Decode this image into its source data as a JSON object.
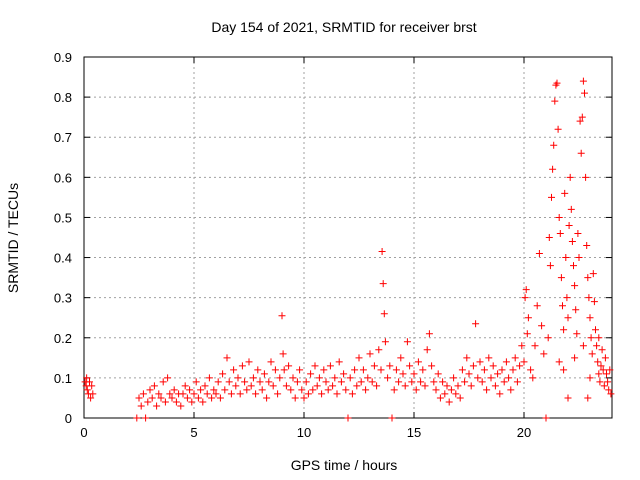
{
  "chart_data": {
    "type": "scatter",
    "title": "Day 154 of 2021, SRMTID for receiver brst",
    "xlabel": "GPS time / hours",
    "ylabel": "SRMTID / TECUs",
    "xlim": [
      0,
      24
    ],
    "ylim": [
      0,
      0.9
    ],
    "grid": true,
    "marker": "plus",
    "color": "#ff0000",
    "xticks": [
      0,
      5,
      10,
      15,
      20
    ],
    "xtick_labels": [
      "0",
      "5",
      "10",
      "15",
      "20"
    ],
    "yticks": [
      0,
      0.1,
      0.2,
      0.3,
      0.4,
      0.5,
      0.6,
      0.7,
      0.8,
      0.9
    ],
    "ytick_labels": [
      "0",
      "0.1",
      "0.2",
      "0.3",
      "0.4",
      "0.5",
      "0.6",
      "0.7",
      "0.8",
      "0.9"
    ],
    "points": [
      [
        0.05,
        0.09
      ],
      [
        0.1,
        0.08
      ],
      [
        0.12,
        0.1
      ],
      [
        0.15,
        0.07
      ],
      [
        0.2,
        0.06
      ],
      [
        0.25,
        0.09
      ],
      [
        0.3,
        0.05
      ],
      [
        0.35,
        0.08
      ],
      [
        0.4,
        0.06
      ],
      [
        2.4,
        0.0
      ],
      [
        2.5,
        0.05
      ],
      [
        2.6,
        0.03
      ],
      [
        2.7,
        0.06
      ],
      [
        2.8,
        0.0
      ],
      [
        2.9,
        0.04
      ],
      [
        3.0,
        0.07
      ],
      [
        3.1,
        0.05
      ],
      [
        3.2,
        0.08
      ],
      [
        3.3,
        0.03
      ],
      [
        3.4,
        0.06
      ],
      [
        3.5,
        0.05
      ],
      [
        3.6,
        0.09
      ],
      [
        3.7,
        0.04
      ],
      [
        3.8,
        0.1
      ],
      [
        3.9,
        0.06
      ],
      [
        4.0,
        0.05
      ],
      [
        4.1,
        0.07
      ],
      [
        4.2,
        0.04
      ],
      [
        4.3,
        0.06
      ],
      [
        4.4,
        0.03
      ],
      [
        4.5,
        0.06
      ],
      [
        4.6,
        0.08
      ],
      [
        4.7,
        0.05
      ],
      [
        4.8,
        0.07
      ],
      [
        4.9,
        0.04
      ],
      [
        5.0,
        0.06
      ],
      [
        5.1,
        0.09
      ],
      [
        5.2,
        0.05
      ],
      [
        5.3,
        0.07
      ],
      [
        5.4,
        0.04
      ],
      [
        5.5,
        0.08
      ],
      [
        5.6,
        0.06
      ],
      [
        5.7,
        0.1
      ],
      [
        5.8,
        0.05
      ],
      [
        5.9,
        0.07
      ],
      [
        6.0,
        0.06
      ],
      [
        6.1,
        0.09
      ],
      [
        6.2,
        0.05
      ],
      [
        6.3,
        0.11
      ],
      [
        6.4,
        0.07
      ],
      [
        6.5,
        0.15
      ],
      [
        6.6,
        0.09
      ],
      [
        6.7,
        0.06
      ],
      [
        6.8,
        0.12
      ],
      [
        6.9,
        0.08
      ],
      [
        7.0,
        0.1
      ],
      [
        7.1,
        0.06
      ],
      [
        7.2,
        0.13
      ],
      [
        7.3,
        0.09
      ],
      [
        7.4,
        0.07
      ],
      [
        7.5,
        0.14
      ],
      [
        7.6,
        0.08
      ],
      [
        7.7,
        0.1
      ],
      [
        7.8,
        0.06
      ],
      [
        7.9,
        0.12
      ],
      [
        8.0,
        0.09
      ],
      [
        8.1,
        0.07
      ],
      [
        8.2,
        0.11
      ],
      [
        8.3,
        0.05
      ],
      [
        8.4,
        0.09
      ],
      [
        8.5,
        0.14
      ],
      [
        8.6,
        0.08
      ],
      [
        8.7,
        0.12
      ],
      [
        8.8,
        0.06
      ],
      [
        8.9,
        0.1
      ],
      [
        9.0,
        0.255
      ],
      [
        9.05,
        0.16
      ],
      [
        9.1,
        0.12
      ],
      [
        9.2,
        0.08
      ],
      [
        9.3,
        0.13
      ],
      [
        9.4,
        0.07
      ],
      [
        9.5,
        0.1
      ],
      [
        9.6,
        0.05
      ],
      [
        9.7,
        0.09
      ],
      [
        9.8,
        0.12
      ],
      [
        9.9,
        0.07
      ],
      [
        10.0,
        0.05
      ],
      [
        10.1,
        0.09
      ],
      [
        10.2,
        0.06
      ],
      [
        10.3,
        0.11
      ],
      [
        10.4,
        0.07
      ],
      [
        10.5,
        0.13
      ],
      [
        10.6,
        0.08
      ],
      [
        10.7,
        0.1
      ],
      [
        10.8,
        0.06
      ],
      [
        10.9,
        0.12
      ],
      [
        11.0,
        0.09
      ],
      [
        11.1,
        0.07
      ],
      [
        11.2,
        0.13
      ],
      [
        11.3,
        0.08
      ],
      [
        11.4,
        0.1
      ],
      [
        11.5,
        0.06
      ],
      [
        11.6,
        0.14
      ],
      [
        11.7,
        0.09
      ],
      [
        11.8,
        0.11
      ],
      [
        11.9,
        0.07
      ],
      [
        12.0,
        0.0
      ],
      [
        12.1,
        0.1
      ],
      [
        12.2,
        0.06
      ],
      [
        12.3,
        0.12
      ],
      [
        12.4,
        0.08
      ],
      [
        12.5,
        0.15
      ],
      [
        12.6,
        0.09
      ],
      [
        12.7,
        0.12
      ],
      [
        12.8,
        0.07
      ],
      [
        12.9,
        0.1
      ],
      [
        13.0,
        0.16
      ],
      [
        13.1,
        0.09
      ],
      [
        13.2,
        0.13
      ],
      [
        13.3,
        0.08
      ],
      [
        13.4,
        0.17
      ],
      [
        13.5,
        0.12
      ],
      [
        13.55,
        0.415
      ],
      [
        13.6,
        0.335
      ],
      [
        13.65,
        0.26
      ],
      [
        13.7,
        0.19
      ],
      [
        13.8,
        0.1
      ],
      [
        13.9,
        0.13
      ],
      [
        14.0,
        0.0
      ],
      [
        14.1,
        0.07
      ],
      [
        14.2,
        0.12
      ],
      [
        14.3,
        0.09
      ],
      [
        14.4,
        0.15
      ],
      [
        14.5,
        0.11
      ],
      [
        14.6,
        0.08
      ],
      [
        14.7,
        0.19
      ],
      [
        14.8,
        0.13
      ],
      [
        14.9,
        0.09
      ],
      [
        15.0,
        0.11
      ],
      [
        15.1,
        0.07
      ],
      [
        15.2,
        0.14
      ],
      [
        15.3,
        0.09
      ],
      [
        15.4,
        0.12
      ],
      [
        15.5,
        0.08
      ],
      [
        15.6,
        0.17
      ],
      [
        15.7,
        0.21
      ],
      [
        15.8,
        0.13
      ],
      [
        15.9,
        0.09
      ],
      [
        16.0,
        0.07
      ],
      [
        16.1,
        0.11
      ],
      [
        16.2,
        0.05
      ],
      [
        16.3,
        0.09
      ],
      [
        16.4,
        0.06
      ],
      [
        16.5,
        0.08
      ],
      [
        16.6,
        0.04
      ],
      [
        16.7,
        0.07
      ],
      [
        16.8,
        0.1
      ],
      [
        16.9,
        0.06
      ],
      [
        17.0,
        0.08
      ],
      [
        17.1,
        0.05
      ],
      [
        17.2,
        0.12
      ],
      [
        17.3,
        0.09
      ],
      [
        17.4,
        0.15
      ],
      [
        17.5,
        0.11
      ],
      [
        17.6,
        0.08
      ],
      [
        17.7,
        0.13
      ],
      [
        17.8,
        0.235
      ],
      [
        17.9,
        0.1
      ],
      [
        18.0,
        0.14
      ],
      [
        18.1,
        0.09
      ],
      [
        18.2,
        0.12
      ],
      [
        18.3,
        0.07
      ],
      [
        18.4,
        0.15
      ],
      [
        18.5,
        0.1
      ],
      [
        18.6,
        0.13
      ],
      [
        18.7,
        0.08
      ],
      [
        18.8,
        0.11
      ],
      [
        18.9,
        0.06
      ],
      [
        19.0,
        0.12
      ],
      [
        19.1,
        0.09
      ],
      [
        19.2,
        0.14
      ],
      [
        19.3,
        0.1
      ],
      [
        19.4,
        0.07
      ],
      [
        19.5,
        0.12
      ],
      [
        19.6,
        0.15
      ],
      [
        19.7,
        0.09
      ],
      [
        19.8,
        0.13
      ],
      [
        19.9,
        0.18
      ],
      [
        20.0,
        0.14
      ],
      [
        20.05,
        0.3
      ],
      [
        20.1,
        0.32
      ],
      [
        20.15,
        0.21
      ],
      [
        20.2,
        0.25
      ],
      [
        20.3,
        0.12
      ],
      [
        20.4,
        0.1
      ],
      [
        20.5,
        0.18
      ],
      [
        20.6,
        0.28
      ],
      [
        20.7,
        0.41
      ],
      [
        20.8,
        0.23
      ],
      [
        20.9,
        0.16
      ],
      [
        21.0,
        0.0
      ],
      [
        21.1,
        0.2
      ],
      [
        21.15,
        0.45
      ],
      [
        21.2,
        0.38
      ],
      [
        21.25,
        0.55
      ],
      [
        21.3,
        0.62
      ],
      [
        21.35,
        0.68
      ],
      [
        21.4,
        0.79
      ],
      [
        21.45,
        0.83
      ],
      [
        21.5,
        0.835
      ],
      [
        21.55,
        0.72
      ],
      [
        21.6,
        0.5
      ],
      [
        21.65,
        0.46
      ],
      [
        21.7,
        0.35
      ],
      [
        21.75,
        0.28
      ],
      [
        21.8,
        0.22
      ],
      [
        21.85,
        0.56
      ],
      [
        21.9,
        0.4
      ],
      [
        21.95,
        0.3
      ],
      [
        22.0,
        0.25
      ],
      [
        22.05,
        0.48
      ],
      [
        22.1,
        0.6
      ],
      [
        22.15,
        0.52
      ],
      [
        22.2,
        0.44
      ],
      [
        22.25,
        0.38
      ],
      [
        22.3,
        0.33
      ],
      [
        22.35,
        0.27
      ],
      [
        22.4,
        0.21
      ],
      [
        22.45,
        0.46
      ],
      [
        22.5,
        0.4
      ],
      [
        22.55,
        0.74
      ],
      [
        22.6,
        0.66
      ],
      [
        22.65,
        0.75
      ],
      [
        22.7,
        0.84
      ],
      [
        22.75,
        0.81
      ],
      [
        22.8,
        0.6
      ],
      [
        22.85,
        0.43
      ],
      [
        22.9,
        0.35
      ],
      [
        22.95,
        0.3
      ],
      [
        23.0,
        0.25
      ],
      [
        23.05,
        0.2
      ],
      [
        23.1,
        0.16
      ],
      [
        23.15,
        0.36
      ],
      [
        23.2,
        0.29
      ],
      [
        23.25,
        0.22
      ],
      [
        23.3,
        0.18
      ],
      [
        23.35,
        0.14
      ],
      [
        23.4,
        0.11
      ],
      [
        23.45,
        0.09
      ],
      [
        23.5,
        0.13
      ],
      [
        23.55,
        0.17
      ],
      [
        23.6,
        0.12
      ],
      [
        23.65,
        0.08
      ],
      [
        23.7,
        0.15
      ],
      [
        23.75,
        0.11
      ],
      [
        23.8,
        0.09
      ],
      [
        23.85,
        0.07
      ],
      [
        23.9,
        0.12
      ],
      [
        23.95,
        0.06
      ],
      [
        22.0,
        0.05
      ],
      [
        21.8,
        0.12
      ],
      [
        22.3,
        0.15
      ],
      [
        22.7,
        0.18
      ],
      [
        23.0,
        0.1
      ],
      [
        21.6,
        0.14
      ],
      [
        22.9,
        0.05
      ],
      [
        23.4,
        0.2
      ]
    ]
  }
}
